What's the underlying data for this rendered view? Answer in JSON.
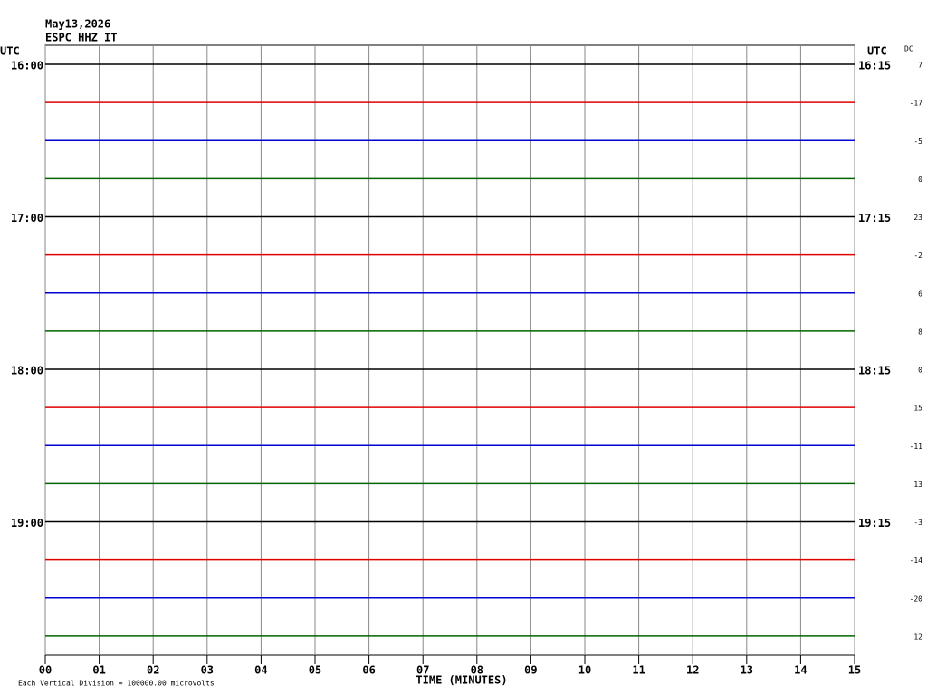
{
  "chart_data": {
    "type": "helicorder",
    "date": "May13,2026",
    "station": "ESPC HHZ IT",
    "left_axis_label": "UTC",
    "right_axis_label": "UTC",
    "dc_label": "DC",
    "xlabel": "TIME (MINUTES)",
    "footnote": "Each Vertical Division = 100000.00 microvolts",
    "xlim": [
      0,
      15
    ],
    "xticks": [
      {
        "value": 0,
        "label": "00"
      },
      {
        "value": 1,
        "label": "01"
      },
      {
        "value": 2,
        "label": "02"
      },
      {
        "value": 3,
        "label": "03"
      },
      {
        "value": 4,
        "label": "04"
      },
      {
        "value": 5,
        "label": "05"
      },
      {
        "value": 6,
        "label": "06"
      },
      {
        "value": 7,
        "label": "07"
      },
      {
        "value": 8,
        "label": "08"
      },
      {
        "value": 9,
        "label": "09"
      },
      10,
      11,
      12,
      13,
      14,
      15
    ],
    "grid": true,
    "rows": [
      {
        "left_label": "16:00",
        "right_label": "16:15",
        "dc": 7,
        "color": "#000000"
      },
      {
        "left_label": null,
        "right_label": null,
        "dc": -17,
        "color": "#e00000"
      },
      {
        "left_label": null,
        "right_label": null,
        "dc": -5,
        "color": "#0000d0"
      },
      {
        "left_label": null,
        "right_label": null,
        "dc": 0,
        "color": "#006400"
      },
      {
        "left_label": "17:00",
        "right_label": "17:15",
        "dc": 23,
        "color": "#000000"
      },
      {
        "left_label": null,
        "right_label": null,
        "dc": -2,
        "color": "#e00000"
      },
      {
        "left_label": null,
        "right_label": null,
        "dc": 6,
        "color": "#0000d0"
      },
      {
        "left_label": null,
        "right_label": null,
        "dc": 8,
        "color": "#006400"
      },
      {
        "left_label": "18:00",
        "right_label": "18:15",
        "dc": 0,
        "color": "#000000"
      },
      {
        "left_label": null,
        "right_label": null,
        "dc": 15,
        "color": "#e00000"
      },
      {
        "left_label": null,
        "right_label": null,
        "dc": -11,
        "color": "#0000d0"
      },
      {
        "left_label": null,
        "right_label": null,
        "dc": 13,
        "color": "#006400"
      },
      {
        "left_label": "19:00",
        "right_label": "19:15",
        "dc": -3,
        "color": "#000000"
      },
      {
        "left_label": null,
        "right_label": null,
        "dc": -14,
        "color": "#e00000"
      },
      {
        "left_label": null,
        "right_label": null,
        "dc": -20,
        "color": "#0000d0"
      },
      {
        "left_label": null,
        "right_label": null,
        "dc": 12,
        "color": "#006400"
      }
    ]
  }
}
